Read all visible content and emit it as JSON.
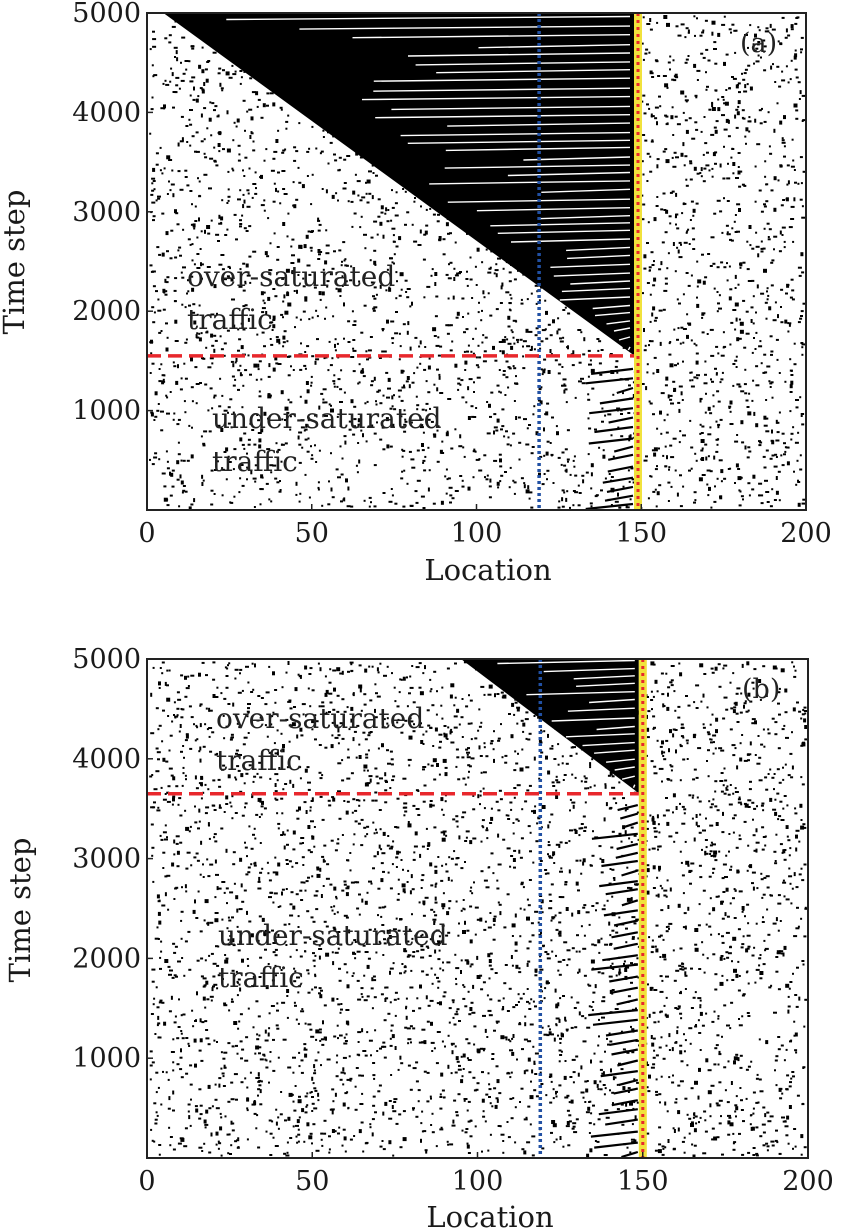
{
  "chart_data": [
    {
      "type": "scatter",
      "panel_label": "(a)",
      "xlabel": "Location",
      "ylabel": "Time step",
      "xlim": [
        0,
        200
      ],
      "ylim": [
        0,
        5000
      ],
      "xticks": [
        "0",
        "50",
        "100",
        "150",
        "200"
      ],
      "yticks": [
        "1000",
        "2000",
        "3000",
        "4000",
        "5000"
      ],
      "annotations": [
        {
          "lines": [
            "over-saturated",
            "traffic"
          ],
          "x": 12,
          "y": 2300
        },
        {
          "lines": [
            "under-saturated",
            "traffic"
          ],
          "x": 20,
          "y": 900
        }
      ],
      "transition_time": 1550,
      "detector_location": 119,
      "signal_location": 149,
      "jam_front_start": [
        148,
        1550
      ],
      "jam_front_end": [
        5,
        5000
      ],
      "colors": {
        "transition": "#e8272c",
        "detector": "#2150a3",
        "signal": "#f1e23c",
        "signal_inner": "#e8272c",
        "vehicle": "#000000"
      }
    },
    {
      "type": "scatter",
      "panel_label": "(b)",
      "xlabel": "Location",
      "ylabel": "Time step",
      "xlim": [
        0,
        200
      ],
      "ylim": [
        0,
        5000
      ],
      "xticks": [
        "0",
        "50",
        "100",
        "150",
        "200"
      ],
      "yticks": [
        "1000",
        "2000",
        "3000",
        "4000",
        "5000"
      ],
      "annotations": [
        {
          "lines": [
            "over-saturated",
            "traffic"
          ],
          "x": 21,
          "y": 4500
        },
        {
          "lines": [
            "under-saturated",
            "traffic"
          ],
          "x": 22,
          "y": 2150
        }
      ],
      "transition_time": 3650,
      "detector_location": 119,
      "signal_location": 150,
      "jam_front_start": [
        149,
        3650
      ],
      "jam_front_end": [
        95,
        5000
      ],
      "colors": {
        "transition": "#e8272c",
        "detector": "#2150a3",
        "signal": "#f1e23c",
        "signal_inner": "#e8272c",
        "vehicle": "#000000"
      }
    }
  ]
}
